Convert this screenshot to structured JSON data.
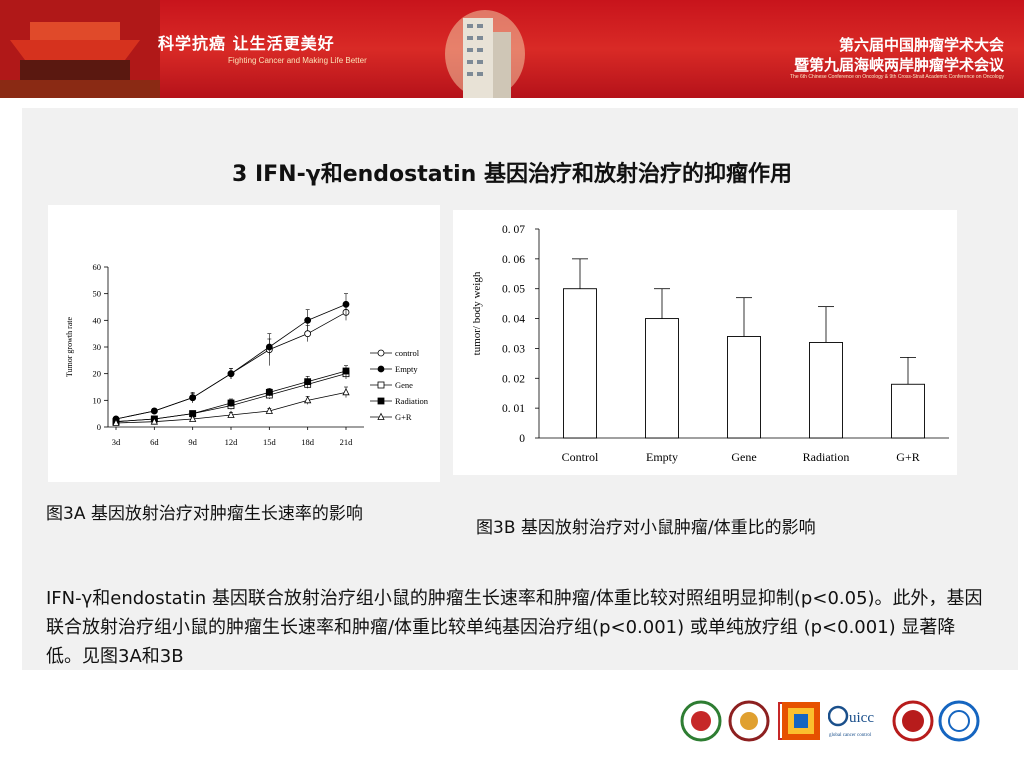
{
  "header": {
    "slogan_cn": "科学抗癌 让生活更美好",
    "slogan_en": "Fighting Cancer and Making Life Better",
    "conference_line1": "第六届中国肿瘤学术大会",
    "conference_line2": "暨第九届海峡两岸肿瘤学术会议",
    "conference_en": "The 6th Chinese Conference on Oncology & 9th Cross-Strait Academic Conference on Oncology"
  },
  "slide": {
    "title": "3 IFN-γ和endostatin 基因治疗和放射治疗的抑瘤作用",
    "caption_a": "图3A 基因放射治疗对肿瘤生长速率的影响",
    "caption_b": "图3B 基因放射治疗对小鼠肿瘤/体重比的影响",
    "paragraph": "IFN-γ和endostatin 基因联合放射治疗组小鼠的肿瘤生长速率和肿瘤/体重比较对照组明显抑制(p<0.05)。此外，基因联合放射治疗组小鼠的肿瘤生长速率和肿瘤/体重比较单纯基因治疗组(p<0.001) 或单纯放疗组 (p<0.001) 显著降低。见图3A和3B"
  },
  "logos": [
    {
      "name": "hospital-logo",
      "color": "#2e7d32"
    },
    {
      "name": "association-logo",
      "color": "#8d2020"
    },
    {
      "name": "caca-logo",
      "color": "#c62828"
    },
    {
      "name": "cae-logo",
      "color": "#e65100"
    },
    {
      "name": "uicc-logo",
      "color": "#1a4f8b",
      "text": "uicc",
      "subtext": "global cancer control"
    },
    {
      "name": "university-logo",
      "color": "#b71c1c"
    },
    {
      "name": "institute-logo",
      "color": "#1565c0"
    }
  ],
  "chart_data": [
    {
      "type": "line",
      "ylabel": "Tumor growth rate",
      "xlabel": "",
      "categories": [
        "3d",
        "6d",
        "9d",
        "12d",
        "15d",
        "18d",
        "21d"
      ],
      "ylim": [
        0,
        60
      ],
      "yticks": [
        0,
        10,
        20,
        30,
        40,
        50,
        60
      ],
      "legend": "right",
      "series": [
        {
          "name": "control",
          "marker": "circle-open",
          "values": [
            3,
            6,
            11,
            20,
            29,
            35,
            43
          ],
          "err": [
            0.5,
            1,
            1.5,
            2,
            6,
            3,
            3
          ]
        },
        {
          "name": "Empty",
          "marker": "circle-filled",
          "values": [
            3,
            6,
            11,
            20,
            30,
            40,
            46
          ],
          "err": [
            0.5,
            1,
            2,
            2,
            3,
            4,
            4
          ]
        },
        {
          "name": "Gene",
          "marker": "square-open",
          "values": [
            2,
            3,
            5,
            8,
            12,
            16,
            20
          ],
          "err": [
            0.5,
            0.5,
            1,
            1.5,
            1.5,
            1.5,
            2
          ]
        },
        {
          "name": "Radiation",
          "marker": "square-filled",
          "values": [
            2,
            3,
            5,
            9,
            13,
            17,
            21
          ],
          "err": [
            0.5,
            0.5,
            1,
            1.5,
            1.5,
            2,
            2
          ]
        },
        {
          "name": "G+R",
          "marker": "triangle-open",
          "values": [
            1.5,
            2,
            3,
            4.5,
            6,
            10,
            13
          ],
          "err": [
            0.3,
            0.3,
            0.5,
            1,
            1,
            1.5,
            2
          ]
        }
      ]
    },
    {
      "type": "bar",
      "ylabel": "tumor/ body weigh",
      "xlabel": "",
      "categories": [
        "Control",
        "Empty",
        "Gene",
        "Radiation",
        "G+R"
      ],
      "values": [
        0.05,
        0.04,
        0.034,
        0.032,
        0.018
      ],
      "err": [
        0.01,
        0.01,
        0.013,
        0.012,
        0.009
      ],
      "ylim": [
        0,
        0.07
      ],
      "yticks": [
        "0",
        "0. 01",
        "0. 02",
        "0. 03",
        "0. 04",
        "0. 05",
        "0. 06",
        "0. 07"
      ],
      "grid": false
    }
  ]
}
